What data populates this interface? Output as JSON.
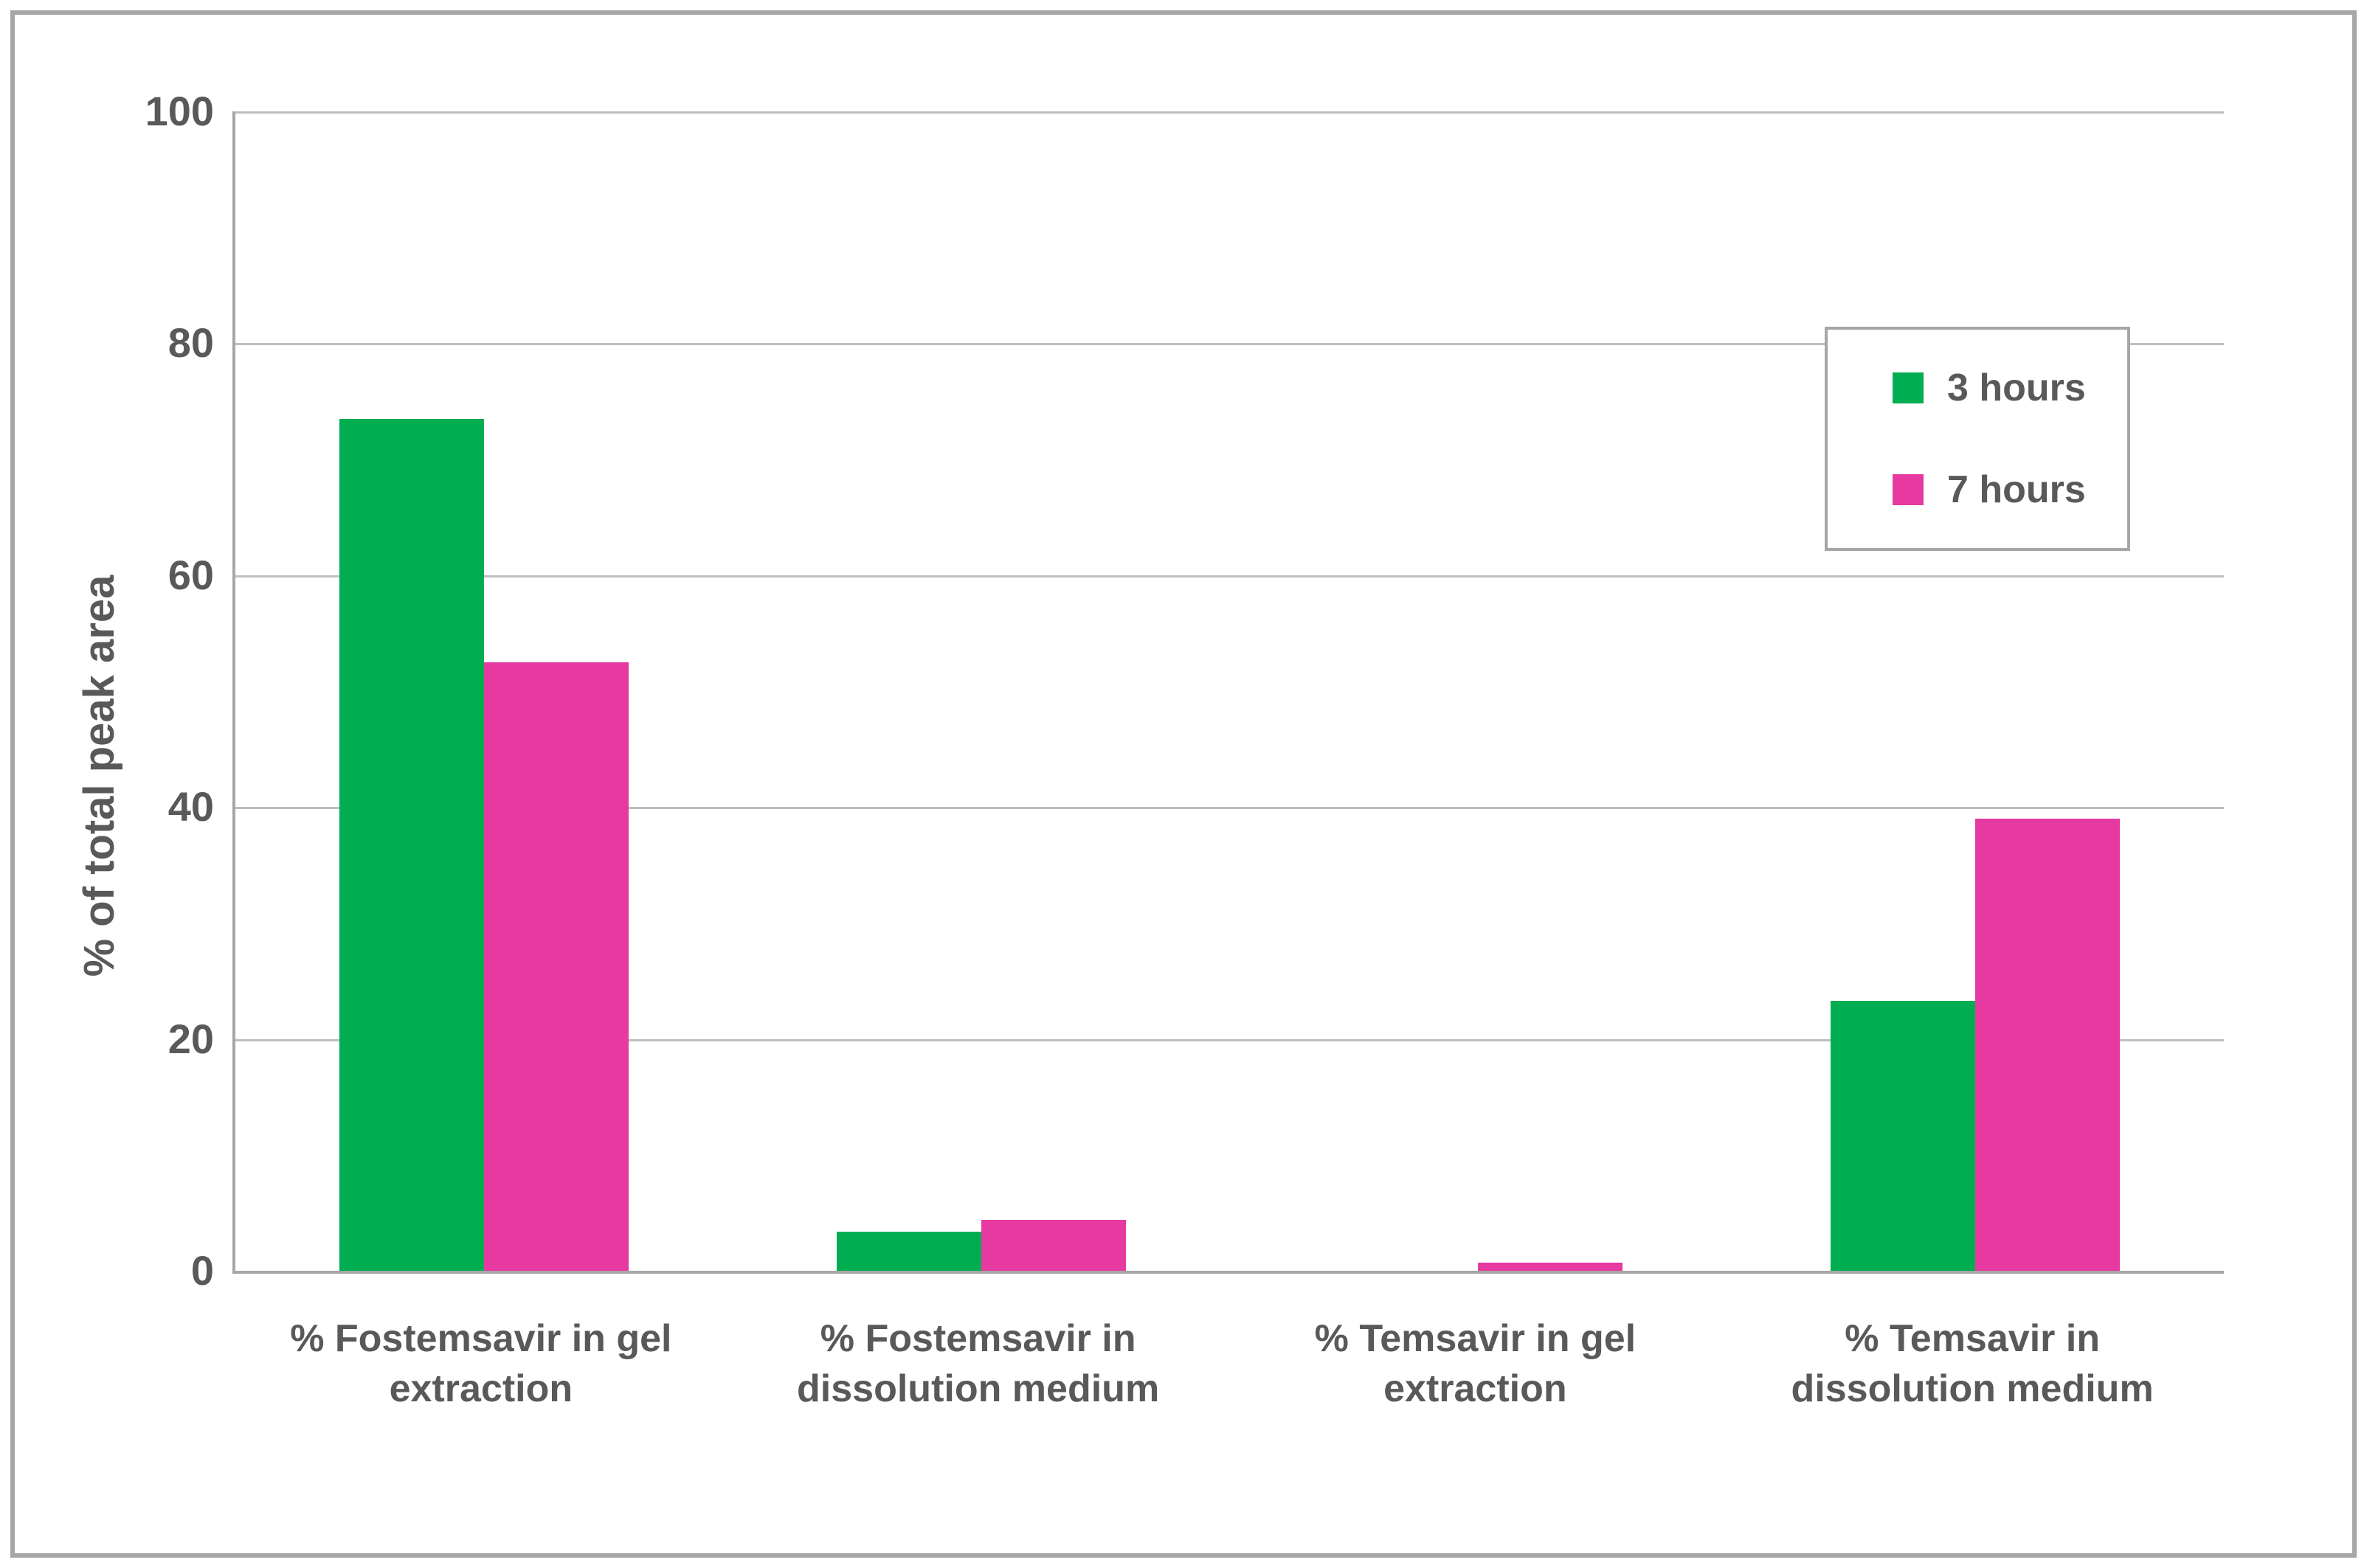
{
  "figure": {
    "background": "#ffffff",
    "border_color": "#a6a6a6",
    "text_color": "#595959",
    "gridline_color": "#bfbfbf",
    "axis_color": "#a6a6a6"
  },
  "chart_data": {
    "type": "bar",
    "title": "",
    "ylabel": "% of total peak area",
    "xlabel": "",
    "ylim": [
      0,
      100
    ],
    "yticks": [
      0,
      20,
      40,
      60,
      80,
      100
    ],
    "grid": true,
    "legend_position": "top-right-inside",
    "categories": [
      "% Fostemsavir in gel extraction",
      "% Fostemsavir in dissolution medium",
      "% Temsavir in gel extraction",
      "% Temsavir in dissolution medium"
    ],
    "series": [
      {
        "name": "3 hours",
        "color": "#00ad51",
        "values": [
          73.5,
          3.4,
          0,
          23.3
        ]
      },
      {
        "name": "7 hours",
        "color": "#e73aa0",
        "values": [
          52.5,
          4.4,
          0.7,
          39
        ]
      }
    ]
  }
}
